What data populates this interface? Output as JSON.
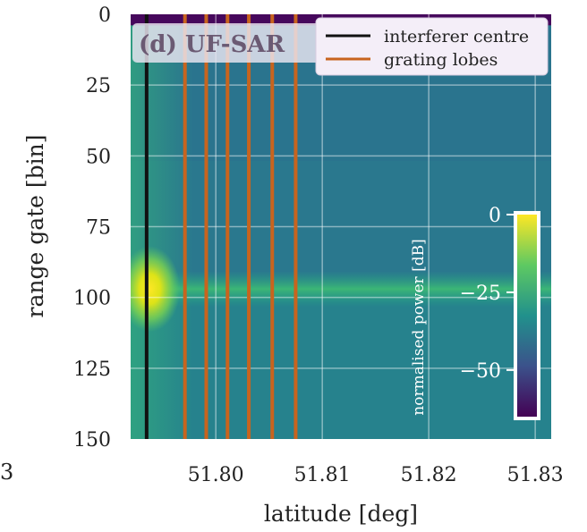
{
  "chart_data": {
    "type": "heatmap",
    "panel_label": "(d) UF-SAR",
    "stray_label": "3",
    "xlabel": "latitude [deg]",
    "ylabel": "range gate [bin]",
    "x_ticks": [
      51.8,
      51.81,
      51.82,
      51.83
    ],
    "x_tick_labels": [
      "51.80",
      "51.81",
      "51.82",
      "51.83"
    ],
    "y_ticks": [
      0,
      25,
      50,
      75,
      100,
      125,
      150
    ],
    "y_tick_labels": [
      "0",
      "25",
      "50",
      "75",
      "100",
      "125",
      "150"
    ],
    "xlim": [
      51.792,
      51.8315
    ],
    "ylim": [
      150,
      0
    ],
    "y_inverted": true,
    "grid": true,
    "legend_position": "top-right",
    "legend": [
      {
        "label": "interferer centre",
        "color": "#111111"
      },
      {
        "label": "grating lobes",
        "color": "#c8641e"
      }
    ],
    "interferer_centre_lat": 51.7935,
    "grating_lobe_lats": [
      51.7971,
      51.7991,
      51.8011,
      51.8031,
      51.8053,
      51.8075
    ],
    "field": {
      "background_db": -27,
      "strong_band_range_gate": 97,
      "hotspot_lat": 51.7938,
      "hotspot_range_gate": 97,
      "hotspot_db": 0,
      "clipped_rows_range_gate": [
        0,
        2
      ]
    },
    "colorbar": {
      "label": "normalised power [dB]",
      "range": [
        -65,
        0
      ],
      "ticks": [
        0,
        -25,
        -50
      ],
      "tick_labels": [
        "0",
        "−25",
        "−50"
      ],
      "colormap": [
        "#440154",
        "#3b528b",
        "#21918c",
        "#5ec962",
        "#fde725"
      ]
    }
  }
}
